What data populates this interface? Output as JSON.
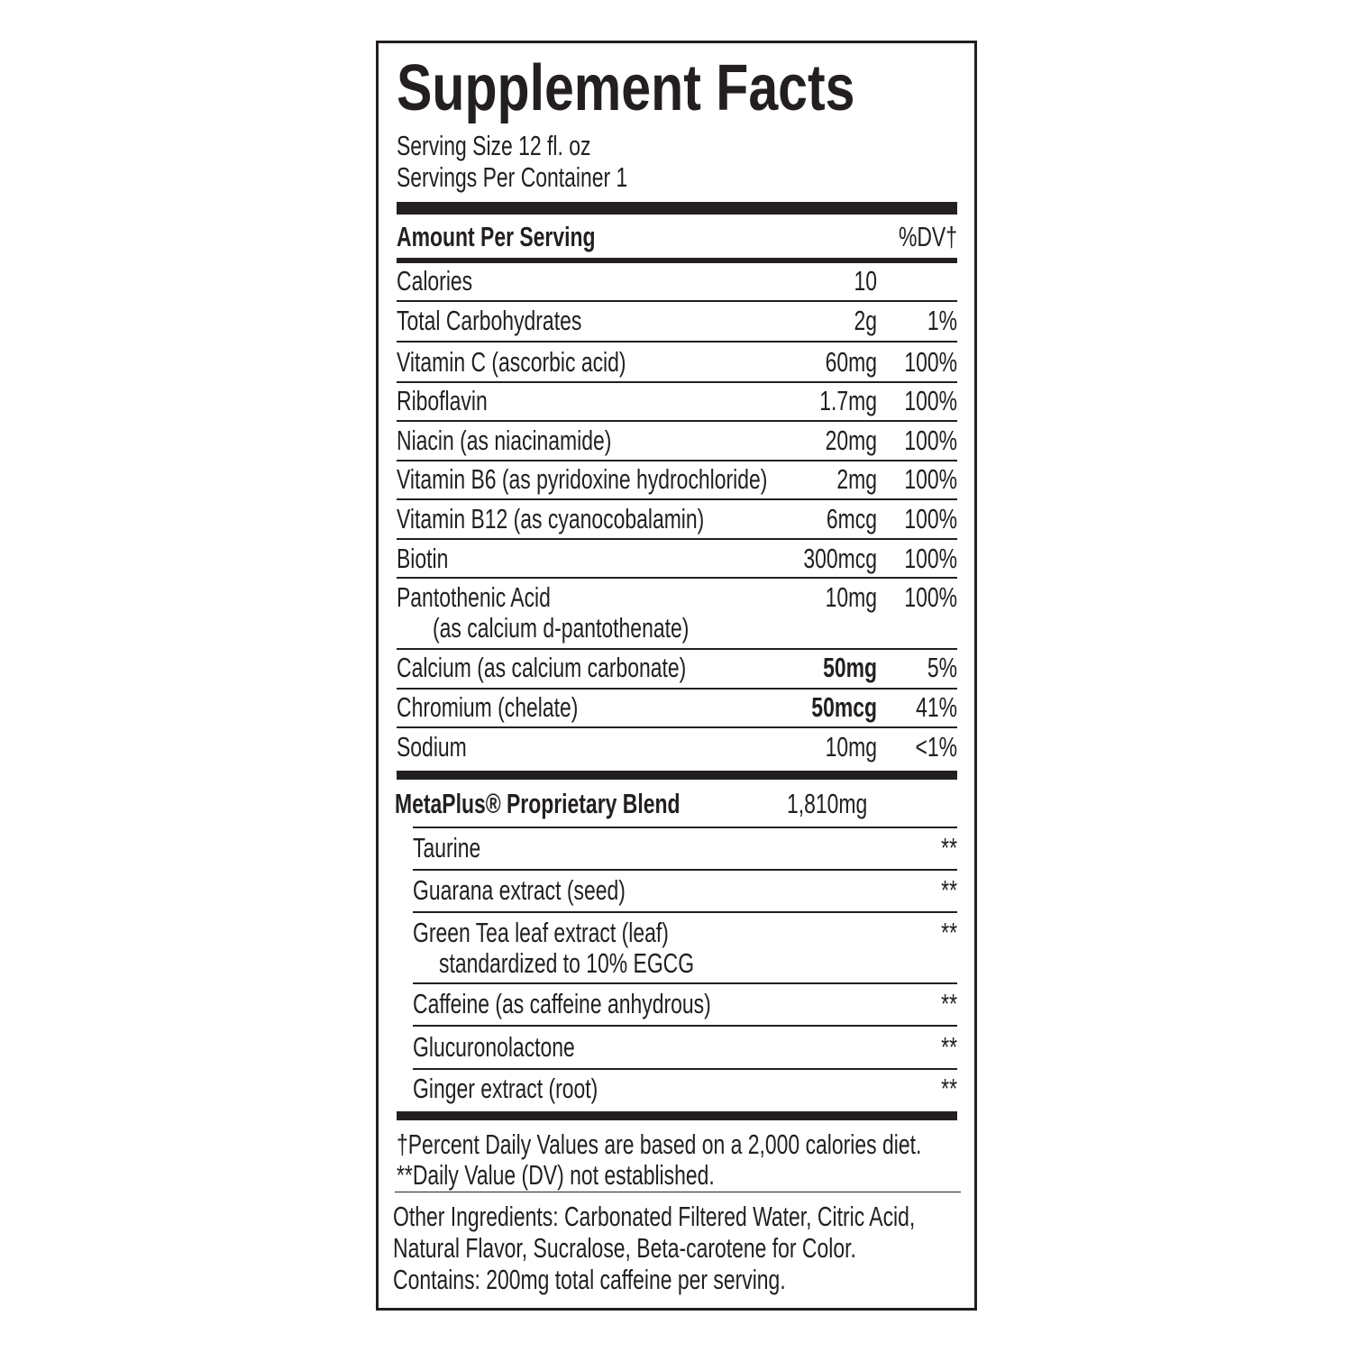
{
  "title": "Supplement Facts",
  "serving_size": "Serving Size 12 fl. oz",
  "servings_per_container": "Servings Per Container 1",
  "header": {
    "amount": "Amount Per Serving",
    "dv": "%DV†"
  },
  "nutrients": [
    {
      "name": "Calories",
      "amount": "10",
      "dv": ""
    },
    {
      "name": "Total Carbohydrates",
      "amount": "2g",
      "dv": "1%"
    },
    {
      "name": "Vitamin C (ascorbic acid)",
      "amount": "60mg",
      "dv": "100%"
    },
    {
      "name": "Riboflavin",
      "amount": "1.7mg",
      "dv": "100%"
    },
    {
      "name": "Niacin (as niacinamide)",
      "amount": "20mg",
      "dv": "100%"
    },
    {
      "name": "Vitamin B6 (as pyridoxine hydrochloride)",
      "amount": "2mg",
      "dv": "100%"
    },
    {
      "name": "Vitamin B12 (as cyanocobalamin)",
      "amount": "6mcg",
      "dv": "100%"
    },
    {
      "name": "Biotin",
      "amount": "300mcg",
      "dv": "100%"
    },
    {
      "name": "Pantothenic Acid",
      "sub": "(as calcium d-pantothenate)",
      "amount": "10mg",
      "dv": "100%"
    },
    {
      "name": "Calcium (as calcium carbonate)",
      "amount": "50mg",
      "dv": "5%"
    },
    {
      "name": "Chromium (chelate)",
      "amount": "50mcg",
      "dv": "41%"
    },
    {
      "name": "Sodium",
      "amount": "10mg",
      "dv": "<1%"
    }
  ],
  "blend": {
    "name": "MetaPlus® Proprietary Blend",
    "amount": "1,810mg",
    "items": [
      {
        "name": "Taurine",
        "dv": "**"
      },
      {
        "name": "Guarana extract (seed)",
        "dv": "**"
      },
      {
        "name": "Green Tea leaf extract (leaf)",
        "sub": "standardized to 10% EGCG",
        "dv": "**"
      },
      {
        "name": "Caffeine (as caffeine anhydrous)",
        "dv": "**"
      },
      {
        "name": "Glucuronolactone",
        "dv": "**"
      },
      {
        "name": "Ginger extract (root)",
        "dv": "**"
      }
    ]
  },
  "footnotes": [
    "†Percent Daily Values are based on a 2,000 calories diet.",
    "**Daily Value (DV) not established."
  ],
  "other_ingredients": [
    "Other Ingredients: Carbonated Filtered Water, Citric Acid,",
    "Natural Flavor, Sucralose, Beta-carotene for Color.",
    "Contains: 200mg total caffeine per serving."
  ]
}
